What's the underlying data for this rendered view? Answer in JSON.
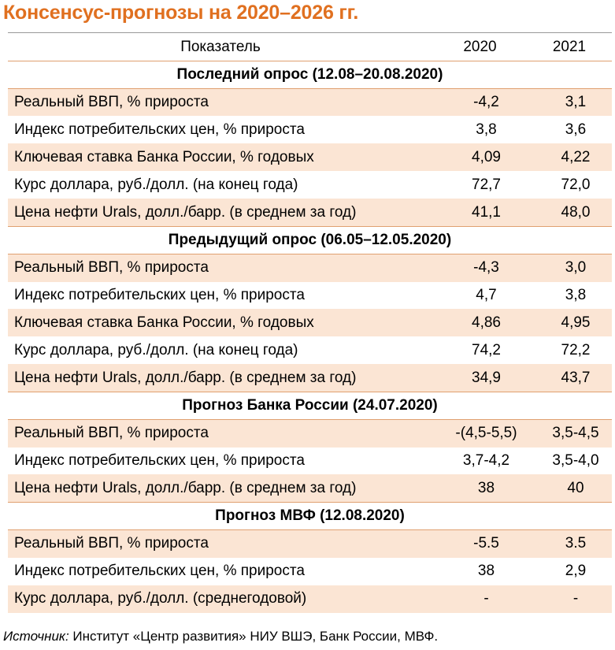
{
  "title": "Консенсус-прогнозы на 2020–2026 гг.",
  "header": {
    "indicator": "Показатель",
    "col1": "2020",
    "col2": "2021"
  },
  "sections": [
    {
      "title": "Последний опрос (12.08–20.08.2020)",
      "rows": [
        {
          "label": "Реальный ВВП, % прироста",
          "v2020": "-4,2",
          "v2021": "3,1"
        },
        {
          "label": "Индекс потребительских цен, % прироста",
          "v2020": "3,8",
          "v2021": "3,6"
        },
        {
          "label": "Ключевая ставка Банка России, % годовых",
          "v2020": "4,09",
          "v2021": "4,22"
        },
        {
          "label": "Курс доллара, руб./долл. (на конец года)",
          "v2020": "72,7",
          "v2021": "72,0"
        },
        {
          "label": "Цена нефти Urals, долл./барр. (в среднем за год)",
          "v2020": "41,1",
          "v2021": "48,0"
        }
      ]
    },
    {
      "title": "Предыдущий опрос (06.05–12.05.2020)",
      "rows": [
        {
          "label": "Реальный ВВП, % прироста",
          "v2020": "-4,3",
          "v2021": "3,0"
        },
        {
          "label": "Индекс потребительских цен, % прироста",
          "v2020": "4,7",
          "v2021": "3,8"
        },
        {
          "label": "Ключевая ставка Банка России, % годовых",
          "v2020": "4,86",
          "v2021": "4,95"
        },
        {
          "label": "Курс доллара, руб./долл. (на конец года)",
          "v2020": "74,2",
          "v2021": "72,2"
        },
        {
          "label": "Цена нефти Urals, долл./барр. (в среднем за год)",
          "v2020": "34,9",
          "v2021": "43,7"
        }
      ]
    },
    {
      "title": "Прогноз Банка России (24.07.2020)",
      "rows": [
        {
          "label": "Реальный ВВП, % прироста",
          "v2020": "-(4,5-5,5)",
          "v2021": "3,5-4,5"
        },
        {
          "label": "Индекс потребительских цен, % прироста",
          "v2020": "3,7-4,2",
          "v2021": "3,5-4,0"
        },
        {
          "label": "Цена нефти Urals, долл./барр. (в среднем за год)",
          "v2020": "38",
          "v2021": "40"
        }
      ]
    },
    {
      "title": "Прогноз МВФ (12.08.2020)",
      "rows": [
        {
          "label": "Реальный ВВП, % прироста",
          "v2020": "-5.5",
          "v2021": "3.5"
        },
        {
          "label": "Индекс потребительских цен, % прироста",
          "v2020": "38",
          "v2021": "2,9"
        },
        {
          "label": "Курс доллара, руб./долл. (среднегодовой)",
          "v2020": "-",
          "v2021": "-"
        }
      ]
    }
  ],
  "source": {
    "label": "Источник:",
    "text": " Институт «Центр развития» НИУ ВШЭ, Банк России, МВФ."
  },
  "colors": {
    "title": "#e07020",
    "row_shade": "#fbe5d4"
  }
}
